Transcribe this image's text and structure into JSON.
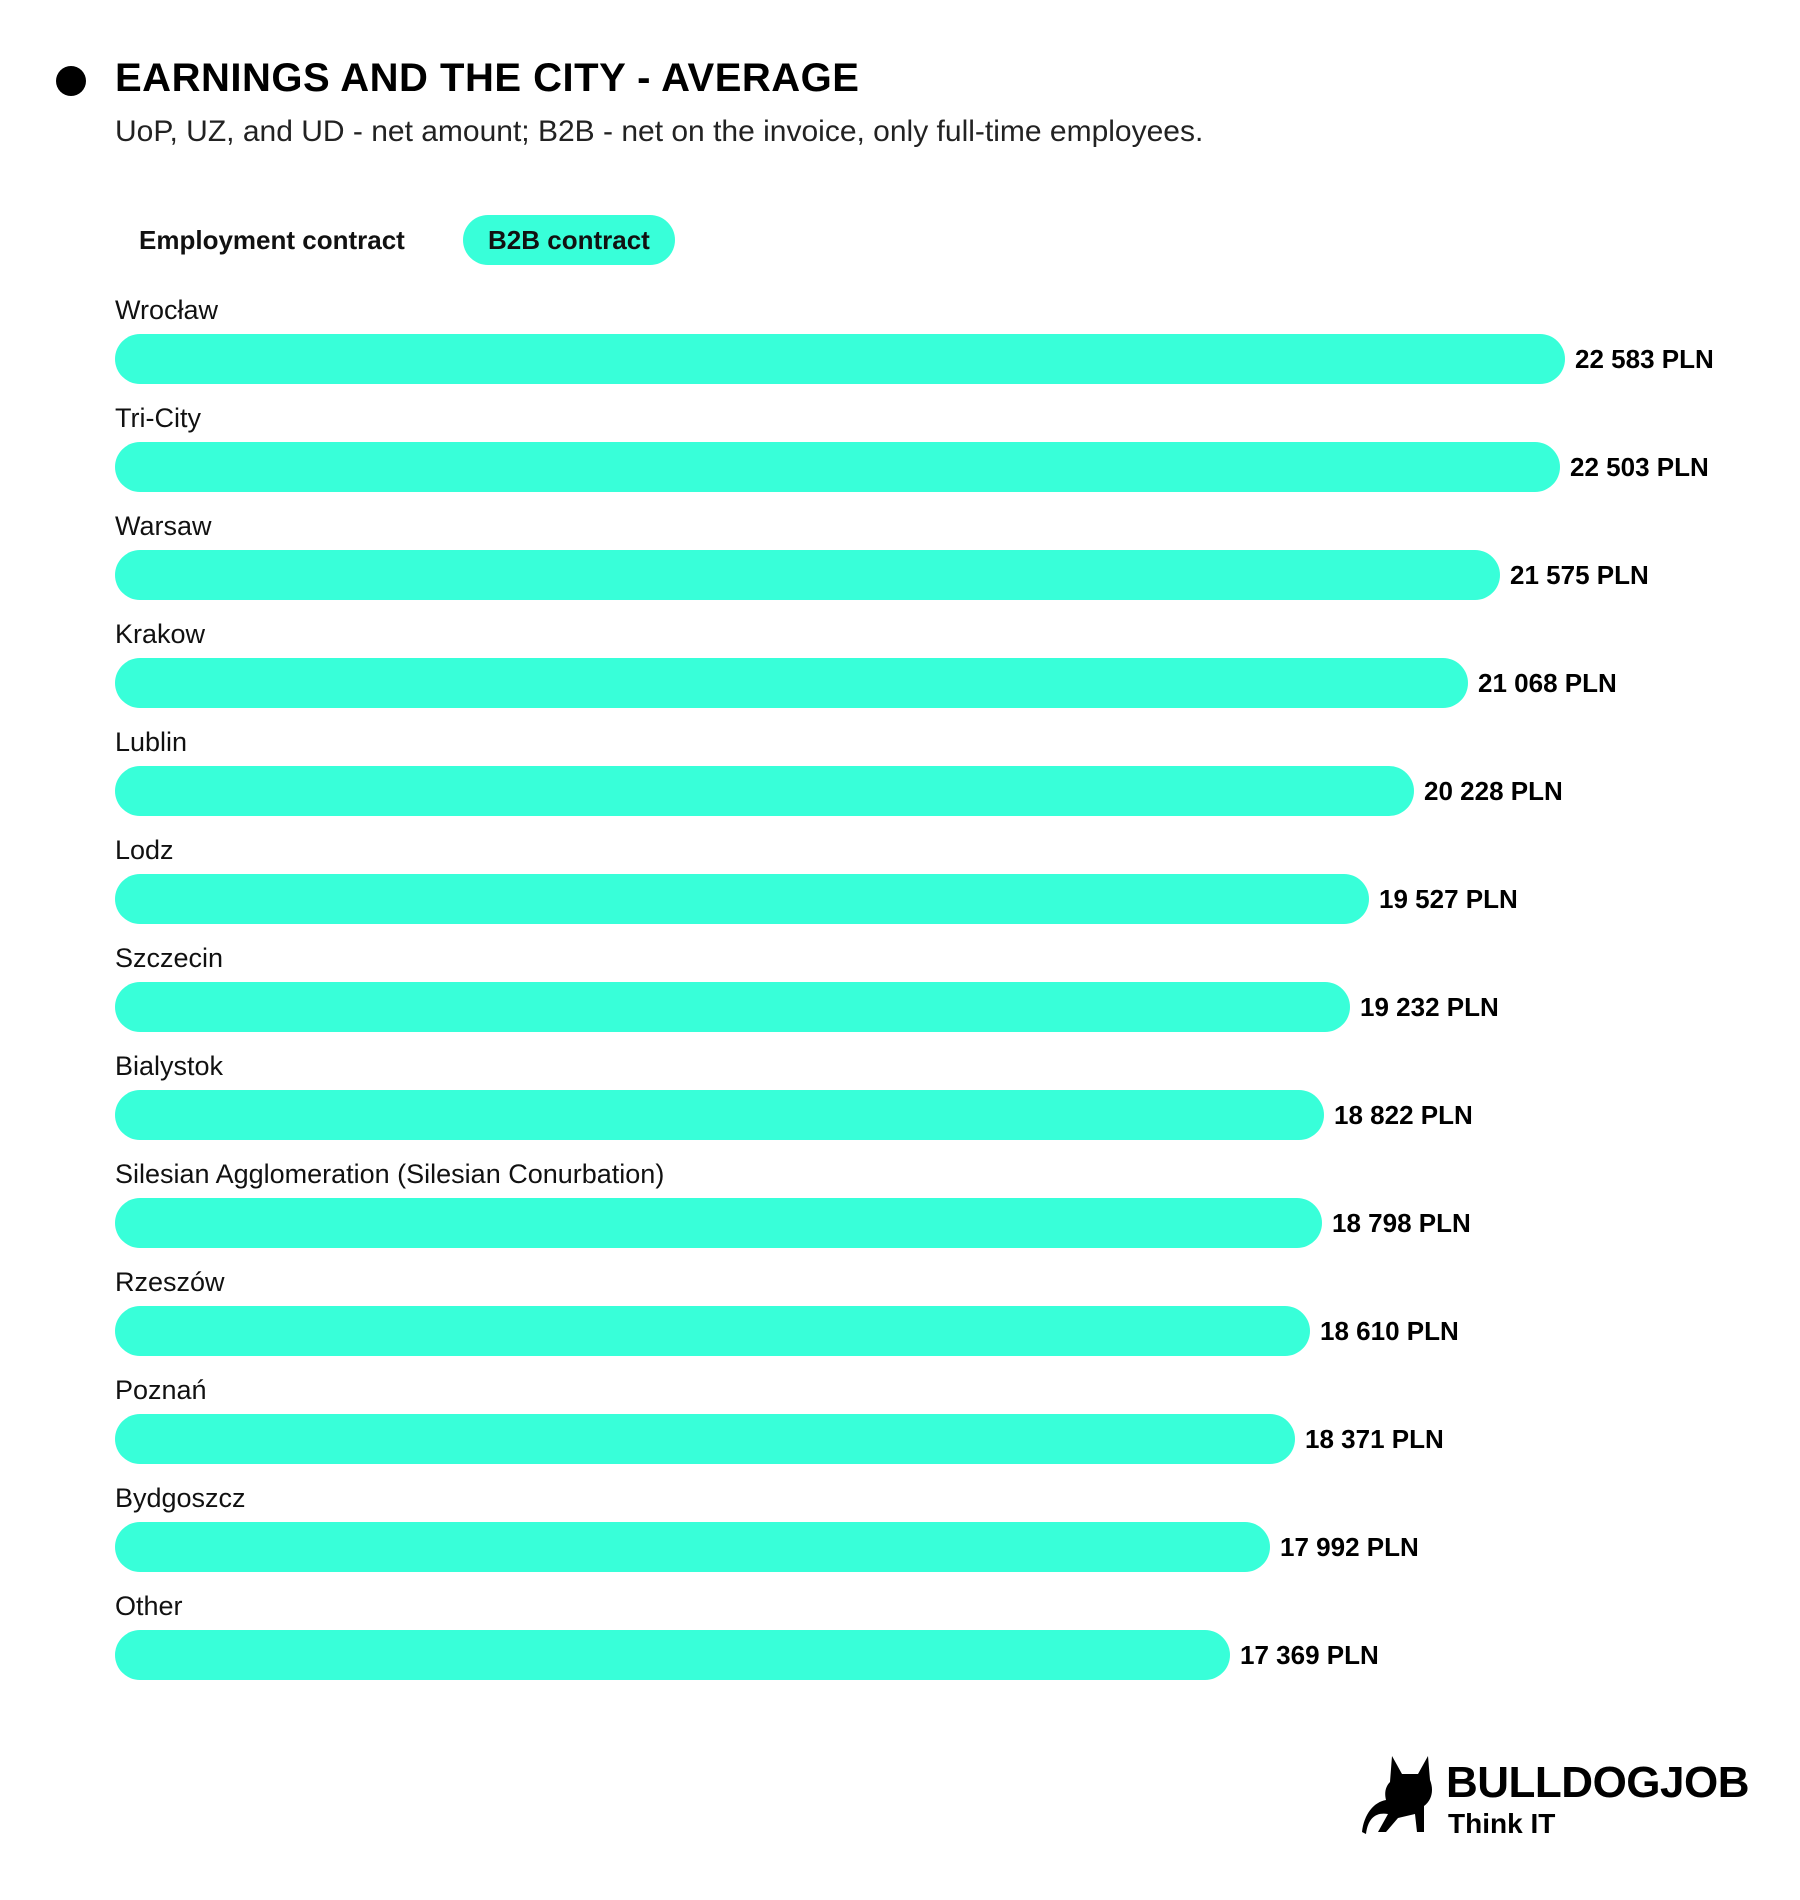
{
  "header": {
    "title": "EARNINGS AND THE CITY - AVERAGE",
    "subtitle": "UoP, UZ, and UD - net amount; B2B - net on the invoice, only full-time employees."
  },
  "tabs": [
    {
      "label": "Employment contract",
      "active": false
    },
    {
      "label": "B2B contract",
      "active": true
    }
  ],
  "colors": {
    "bar": "#38ffd9",
    "text": "#000000"
  },
  "chart_data": {
    "type": "bar",
    "orientation": "horizontal",
    "title": "EARNINGS AND THE CITY - AVERAGE",
    "subtitle": "UoP, UZ, and UD - net amount; B2B - net on the invoice, only full-time employees.",
    "xlabel": "",
    "ylabel": "",
    "xlim": [
      0,
      22583
    ],
    "grid": false,
    "categories": [
      "Wrocław",
      "Tri-City",
      "Warsaw",
      "Krakow",
      "Lublin",
      "Lodz",
      "Szczecin",
      "Bialystok",
      "Silesian Agglomeration (Silesian Conurbation)",
      "Rzeszów",
      "Poznań",
      "Bydgoszcz",
      "Other"
    ],
    "values": [
      22583,
      22503,
      21575,
      21068,
      20228,
      19527,
      19232,
      18822,
      18798,
      18610,
      18371,
      17992,
      17369
    ],
    "value_labels": [
      "22 583 PLN",
      "22 503 PLN",
      "21 575 PLN",
      "21 068 PLN",
      "20 228 PLN",
      "19 527 PLN",
      "19 232 PLN",
      "18 822 PLN",
      "18 798 PLN",
      "18 610 PLN",
      "18 371 PLN",
      "17 992 PLN",
      "17 369 PLN"
    ]
  },
  "logo": {
    "name": "BULLDOGJOB",
    "tagline": "Think IT",
    "icon": "bulldog-icon"
  }
}
